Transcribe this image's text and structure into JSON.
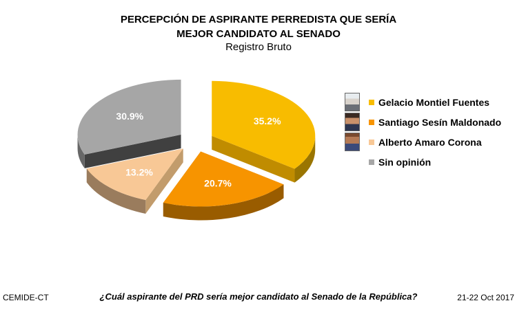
{
  "chart_data": {
    "type": "pie",
    "title": "PERCEPCIÓN DE ASPIRANTE PERREDISTA QUE SERÍA MEJOR CANDIDATO AL SENADO",
    "title_lines": [
      "PERCEPCIÓN DE ASPIRANTE PERREDISTA QUE SERÍA",
      "MEJOR CANDIDATO AL SENADO"
    ],
    "subtitle": "Registro Bruto",
    "three_d": true,
    "legend_position": "right",
    "slices": [
      {
        "name": "Gelacio Montiel Fuentes",
        "value": 35.2,
        "label": "35.2%",
        "color": "#F8BC00",
        "photo": "candidate-photo-gelacio"
      },
      {
        "name": "Santiago Sesín Maldonado",
        "value": 20.7,
        "label": "20.7%",
        "color": "#F79400",
        "photo": "candidate-photo-santiago"
      },
      {
        "name": "Alberto Amaro Corona",
        "value": 13.2,
        "label": "13.2%",
        "color": "#F8C896",
        "photo": "candidate-photo-alberto"
      },
      {
        "name": "Sin opinión",
        "value": 30.9,
        "label": "30.9%",
        "color": "#A6A6A6",
        "photo": ""
      }
    ]
  },
  "footer": {
    "source": "CEMIDE-CT",
    "question": "¿Cuál aspirante del PRD sería mejor candidato al Senado de la República?",
    "date": "21-22 Oct 2017"
  }
}
